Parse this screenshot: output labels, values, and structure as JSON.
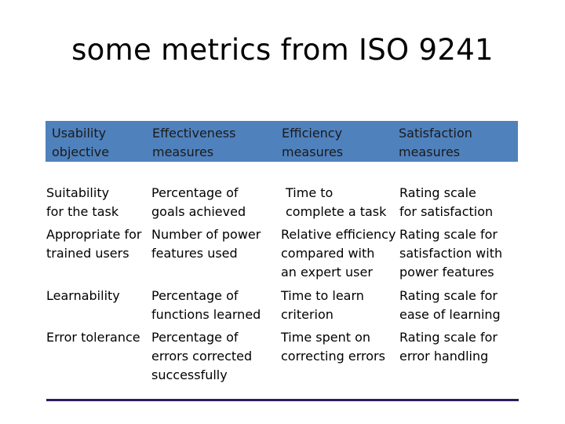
{
  "slide": {
    "title": "some metrics from ISO 9241"
  },
  "table": {
    "headers": [
      "Usability\nobjective",
      "Effectiveness\nmeasures",
      "Efficiency\nmeasures",
      "Satisfaction\nmeasures"
    ],
    "header_color": "#4f81bd",
    "rows": [
      [
        "Suitability\nfor the task",
        "Percentage of\ngoals achieved",
        "Time to\ncomplete a task",
        "Rating scale\nfor satisfaction"
      ],
      [
        "Appropriate for\ntrained users",
        "Number of power\nfeatures used",
        "Relative efficiency\ncompared with\nan expert user",
        "Rating scale for\nsatisfaction with\npower features"
      ],
      [
        "Learnability",
        "Percentage of\nfunctions learned",
        "Time to learn\ncriterion",
        "Rating scale for\nease of learning"
      ],
      [
        "Error tolerance",
        "Percentage of\nerrors corrected\nsuccessfully",
        "Time spent on\ncorrecting errors",
        "Rating scale for\nerror handling"
      ]
    ]
  }
}
